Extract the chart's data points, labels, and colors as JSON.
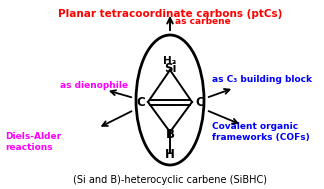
{
  "title_top": "Planar tetracoordinate carbons (ptCs)",
  "title_top_color": "#ff0000",
  "title_bottom": "(Si and B)-heterocyclic carbene (SiBHC)",
  "title_bottom_color": "#000000",
  "label_carbene": "as carbene",
  "label_carbene_color": "#ff0000",
  "label_dienophile": "as dienophile",
  "label_dienophile_color": "#ff00ff",
  "label_diels_alder": "Diels-Alder\nreactions",
  "label_diels_alder_color": "#ff00ff",
  "label_c3_line1": "as C",
  "label_c3_sub": "3",
  "label_c3_line2": " building block",
  "label_c3_color": "#0000ff",
  "label_cof": "Covalent organic\nframeworks (COFs)",
  "label_cof_color": "#0000ff",
  "background_color": "#ffffff"
}
